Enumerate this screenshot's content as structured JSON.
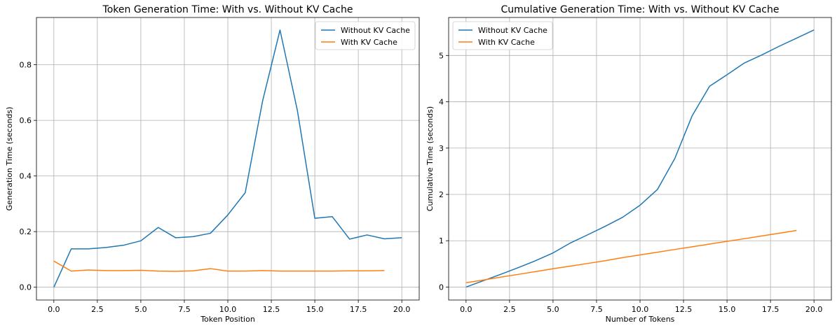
{
  "chart_data": [
    {
      "type": "line",
      "title": "Token Generation Time: With vs. Without KV Cache",
      "xlabel": "Token Position",
      "ylabel": "Generation Time (seconds)",
      "xlim": [
        -1.0,
        21.0
      ],
      "ylim": [
        -0.046,
        0.97
      ],
      "xticks": [
        0.0,
        2.5,
        5.0,
        7.5,
        10.0,
        12.5,
        15.0,
        17.5,
        20.0
      ],
      "xtick_labels": [
        "0.0",
        "2.5",
        "5.0",
        "7.5",
        "10.0",
        "12.5",
        "15.0",
        "17.5",
        "20.0"
      ],
      "yticks": [
        0.0,
        0.2,
        0.4,
        0.6,
        0.8
      ],
      "ytick_labels": [
        "0.0",
        "0.2",
        "0.4",
        "0.6",
        "0.8"
      ],
      "grid": true,
      "legend_position": "top-right",
      "series": [
        {
          "name": "Without KV Cache",
          "color": "#1f77b4",
          "x": [
            0,
            1,
            2,
            3,
            4,
            5,
            6,
            7,
            8,
            9,
            10,
            11,
            12,
            13,
            14,
            15,
            16,
            17,
            18,
            19,
            20
          ],
          "y": [
            0.0,
            0.138,
            0.138,
            0.143,
            0.151,
            0.167,
            0.215,
            0.178,
            0.182,
            0.194,
            0.26,
            0.34,
            0.67,
            0.925,
            0.635,
            0.248,
            0.254,
            0.173,
            0.188,
            0.174,
            0.178
          ]
        },
        {
          "name": "With KV Cache",
          "color": "#ff7f0e",
          "x": [
            0,
            1,
            2,
            3,
            4,
            5,
            6,
            7,
            8,
            9,
            10,
            11,
            12,
            13,
            14,
            15,
            16,
            17,
            18,
            19
          ],
          "y": [
            0.094,
            0.058,
            0.062,
            0.06,
            0.06,
            0.061,
            0.058,
            0.057,
            0.059,
            0.067,
            0.058,
            0.058,
            0.06,
            0.058,
            0.058,
            0.058,
            0.058,
            0.059,
            0.059,
            0.06
          ]
        }
      ]
    },
    {
      "type": "line",
      "title": "Cumulative Generation Time: With vs. Without KV Cache",
      "xlabel": "Number of Tokens",
      "ylabel": "Cumulative Time (seconds)",
      "xlim": [
        -1.0,
        21.0
      ],
      "ylim": [
        -0.28,
        5.82
      ],
      "xticks": [
        0.0,
        2.5,
        5.0,
        7.5,
        10.0,
        12.5,
        15.0,
        17.5,
        20.0
      ],
      "xtick_labels": [
        "0.0",
        "2.5",
        "5.0",
        "7.5",
        "10.0",
        "12.5",
        "15.0",
        "17.5",
        "20.0"
      ],
      "yticks": [
        0,
        1,
        2,
        3,
        4,
        5
      ],
      "ytick_labels": [
        "0",
        "1",
        "2",
        "3",
        "4",
        "5"
      ],
      "grid": true,
      "legend_position": "top-left",
      "series": [
        {
          "name": "Without KV Cache",
          "color": "#1f77b4",
          "x": [
            0,
            1,
            2,
            3,
            4,
            5,
            6,
            7,
            8,
            9,
            10,
            11,
            12,
            13,
            14,
            15,
            16,
            17,
            18,
            19,
            20
          ],
          "y": [
            0.0,
            0.138,
            0.276,
            0.419,
            0.57,
            0.737,
            0.952,
            1.13,
            1.312,
            1.506,
            1.766,
            2.106,
            2.776,
            3.701,
            4.336,
            4.584,
            4.838,
            5.011,
            5.199,
            5.373,
            5.551
          ]
        },
        {
          "name": "With KV Cache",
          "color": "#ff7f0e",
          "x": [
            0,
            1,
            2,
            3,
            4,
            5,
            6,
            7,
            8,
            9,
            10,
            11,
            12,
            13,
            14,
            15,
            16,
            17,
            18,
            19
          ],
          "y": [
            0.094,
            0.152,
            0.214,
            0.274,
            0.334,
            0.395,
            0.453,
            0.51,
            0.569,
            0.636,
            0.694,
            0.752,
            0.812,
            0.87,
            0.928,
            0.986,
            1.044,
            1.103,
            1.162,
            1.222
          ]
        }
      ]
    }
  ]
}
